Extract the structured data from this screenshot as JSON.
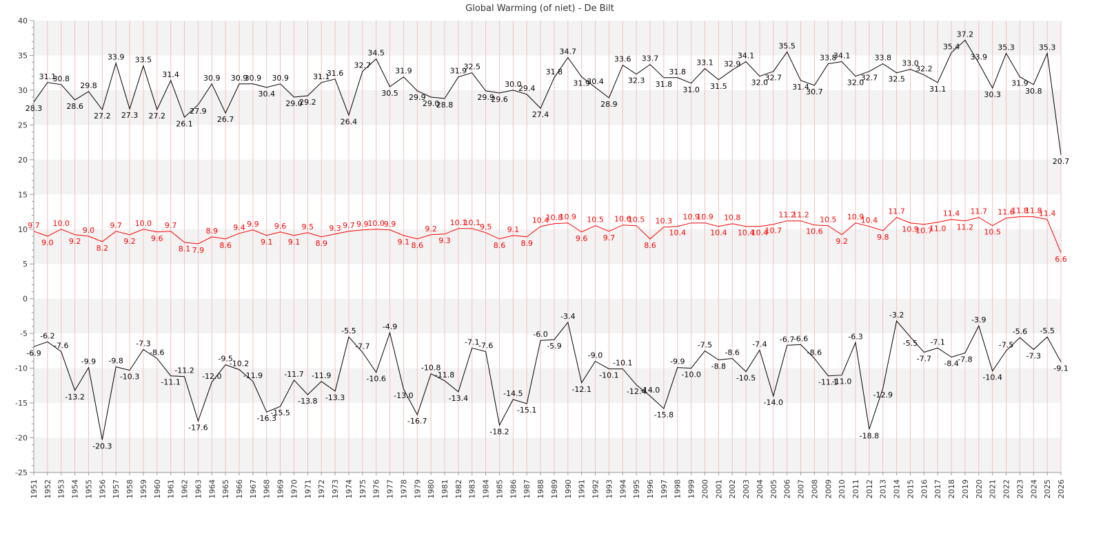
{
  "chart_data": {
    "type": "line",
    "title": "Global Warming (of niet) - De Bilt",
    "xlabel": "",
    "ylabel": "",
    "ylim": [
      -25,
      40
    ],
    "yticks": [
      -25,
      -20,
      -15,
      -10,
      -5,
      0,
      5,
      10,
      15,
      20,
      25,
      30,
      35,
      40
    ],
    "grid": "alternating horizontal bands, vertical line per year",
    "legend": "none",
    "colors": {
      "band": "#f3f3f3",
      "vgrid": "#f4c0c0",
      "max": "#000000",
      "mean": "#ff0000",
      "min": "#000000",
      "axis": "#999999"
    },
    "categories": [
      "1951",
      "1952",
      "1953",
      "1954",
      "1955",
      "1956",
      "1957",
      "1958",
      "1959",
      "1960",
      "1961",
      "1962",
      "1963",
      "1964",
      "1965",
      "1966",
      "1967",
      "1968",
      "1969",
      "1970",
      "1971",
      "1972",
      "1973",
      "1974",
      "1975",
      "1976",
      "1977",
      "1978",
      "1979",
      "1980",
      "1981",
      "1982",
      "1983",
      "1984",
      "1985",
      "1986",
      "1987",
      "1988",
      "1989",
      "1990",
      "1991",
      "1992",
      "1993",
      "1994",
      "1995",
      "1996",
      "1997",
      "1998",
      "1999",
      "2000",
      "2001",
      "2002",
      "2003",
      "2004",
      "2005",
      "2006",
      "2007",
      "2008",
      "2009",
      "2010",
      "2011",
      "2012",
      "2013",
      "2014",
      "2015",
      "2016",
      "2017",
      "2018",
      "2019",
      "2020",
      "2021",
      "2022",
      "2023",
      "2024",
      "2025",
      "2026"
    ],
    "series": [
      {
        "key": "max",
        "color": "#000000",
        "values": [
          28.3,
          31.1,
          30.8,
          28.6,
          29.8,
          27.2,
          33.9,
          27.3,
          33.5,
          27.2,
          31.4,
          26.1,
          27.9,
          30.9,
          26.7,
          30.9,
          30.9,
          30.4,
          30.9,
          29.0,
          29.2,
          31.1,
          31.6,
          26.4,
          32.7,
          34.5,
          30.5,
          31.9,
          29.9,
          29.0,
          28.8,
          31.9,
          32.5,
          29.9,
          29.6,
          30.0,
          29.4,
          27.4,
          31.8,
          34.7,
          31.9,
          30.4,
          28.9,
          33.6,
          32.3,
          33.7,
          31.8,
          31.8,
          31.0,
          33.1,
          31.5,
          32.9,
          34.1,
          32.0,
          32.7,
          35.5,
          31.4,
          30.7,
          33.8,
          34.1,
          32.0,
          32.7,
          33.8,
          32.5,
          33.0,
          32.2,
          31.1,
          35.4,
          37.2,
          33.9,
          30.3,
          35.3,
          31.9,
          30.8,
          35.3,
          20.7
        ]
      },
      {
        "key": "mean",
        "color": "#ff0000",
        "values": [
          9.7,
          9.0,
          10.0,
          9.2,
          9.0,
          8.2,
          9.7,
          9.2,
          10.0,
          9.6,
          9.7,
          8.1,
          7.9,
          8.9,
          8.6,
          9.4,
          9.9,
          9.1,
          9.6,
          9.1,
          9.5,
          8.9,
          9.3,
          9.7,
          9.9,
          10.0,
          9.9,
          9.1,
          8.6,
          9.2,
          9.3,
          10.1,
          10.1,
          9.5,
          8.6,
          9.1,
          8.9,
          10.4,
          10.8,
          10.9,
          9.6,
          10.5,
          9.7,
          10.6,
          10.5,
          8.6,
          10.3,
          10.4,
          10.9,
          10.9,
          10.4,
          10.8,
          10.4,
          10.4,
          10.7,
          11.2,
          11.2,
          10.6,
          10.5,
          9.2,
          10.9,
          10.4,
          9.8,
          11.7,
          10.9,
          10.7,
          11.0,
          11.4,
          11.2,
          11.7,
          10.5,
          11.6,
          11.8,
          11.8,
          11.4,
          6.6
        ]
      },
      {
        "key": "min",
        "color": "#000000",
        "values": [
          -6.9,
          -6.2,
          -7.6,
          -13.2,
          -9.9,
          -20.3,
          -9.8,
          -10.3,
          -7.3,
          -8.6,
          -11.1,
          -11.2,
          -17.6,
          -12.0,
          -9.5,
          -10.2,
          -11.9,
          -16.3,
          -15.5,
          -11.7,
          -13.8,
          -11.9,
          -13.3,
          -5.5,
          -7.7,
          -10.6,
          -4.9,
          -13.0,
          -16.7,
          -10.8,
          -11.8,
          -13.4,
          -7.1,
          -7.6,
          -18.2,
          -14.5,
          -15.1,
          -6.0,
          -5.9,
          -3.4,
          -12.1,
          -9.0,
          -10.1,
          -10.1,
          -12.4,
          -14.0,
          -15.8,
          -9.9,
          -10.0,
          -7.5,
          -8.8,
          -8.6,
          -10.5,
          -7.4,
          -14.0,
          -6.7,
          -6.6,
          -8.6,
          -11.1,
          -11.0,
          -6.3,
          -18.8,
          -12.9,
          -3.2,
          -5.5,
          -7.7,
          -7.1,
          -8.4,
          -7.8,
          -3.9,
          -10.4,
          -7.5,
          -5.6,
          -7.3,
          -5.5,
          -9.1
        ]
      }
    ]
  }
}
